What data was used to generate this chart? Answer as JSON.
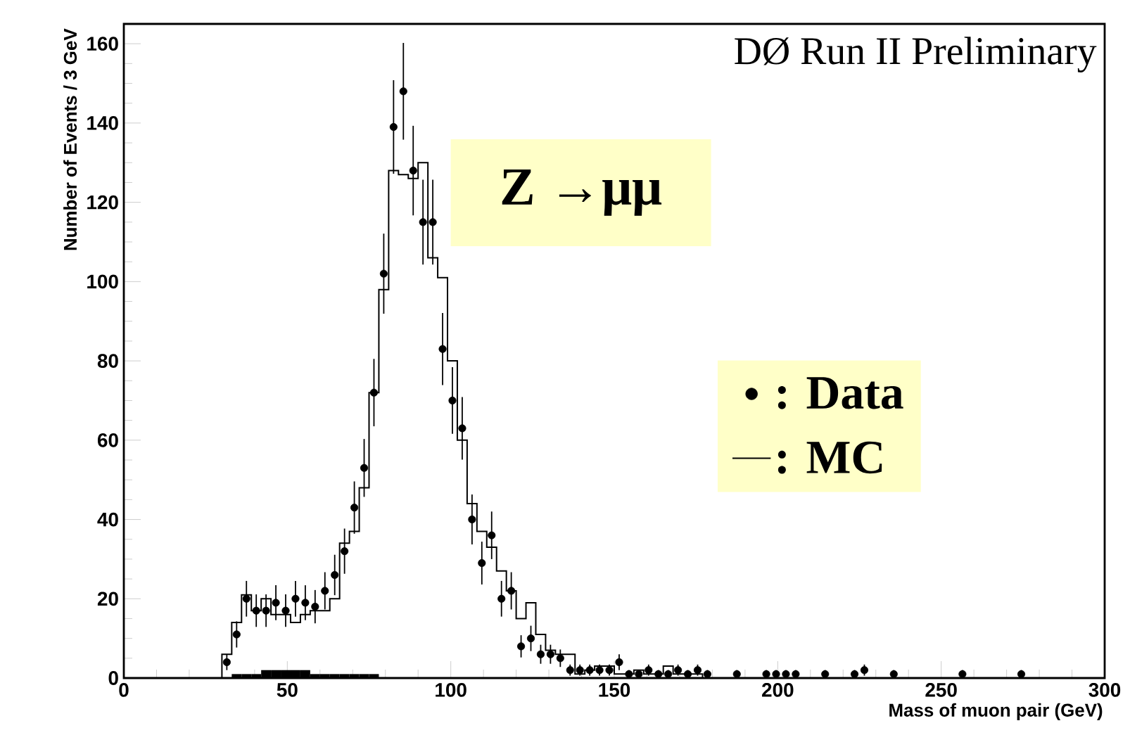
{
  "chart_data": {
    "type": "histogram",
    "annotations": [
      "DØ Run II Preliminary",
      "Z →μμ"
    ],
    "xlabel": "Mass of muon pair (GeV)",
    "ylabel": "Number of Events / 3 GeV",
    "xlim": [
      0,
      300
    ],
    "ylim": [
      0,
      165
    ],
    "xticks": [
      0,
      50,
      100,
      150,
      200,
      250,
      300
    ],
    "yticks": [
      0,
      20,
      40,
      60,
      80,
      100,
      120,
      140,
      160
    ],
    "legend": "right",
    "series": [
      {
        "color": "#000000",
        "bins": [
          33,
          36,
          39,
          42,
          45,
          48,
          51,
          54,
          57,
          60,
          63,
          66,
          69,
          72,
          75,
          78
        ],
        "values": [
          1,
          1,
          1,
          2,
          2,
          2,
          2,
          2,
          1,
          1,
          1,
          1,
          1,
          1,
          1
        ]
      },
      {
        "type": "scatter",
        "name": ": Data",
        "color": "#000000",
        "marker": "circle",
        "x": [
          31.5,
          34.5,
          37.5,
          40.5,
          43.5,
          46.5,
          49.5,
          52.5,
          55.5,
          58.5,
          61.5,
          64.5,
          67.5,
          70.5,
          73.5,
          76.5,
          79.5,
          82.5,
          85.5,
          88.5,
          91.5,
          94.5,
          97.5,
          100.5,
          103.5,
          106.5,
          109.5,
          112.5,
          115.5,
          118.5,
          121.5,
          124.5,
          127.5,
          130.5,
          133.5,
          136.5,
          139.5,
          142.5,
          145.5,
          148.5,
          151.5,
          154.5,
          157.5,
          160.5,
          163.5,
          166.5,
          169.5,
          172.5,
          175.5,
          178.5,
          187.5,
          196.5,
          199.5,
          202.5,
          205.5,
          214.5,
          223.5,
          226.5,
          235.5,
          256.5,
          274.5
        ],
        "values": [
          4,
          11,
          20,
          17,
          17,
          19,
          17,
          20,
          19,
          18,
          22,
          26,
          32,
          43,
          53,
          72,
          102,
          139,
          148,
          128,
          115,
          115,
          83,
          70,
          63,
          40,
          29,
          36,
          20,
          22,
          8,
          10,
          6,
          6,
          5,
          2,
          2,
          2,
          2,
          2,
          4,
          1,
          1,
          2,
          1,
          1,
          2,
          1,
          2,
          1,
          1,
          1,
          1,
          1,
          1,
          1,
          1,
          2,
          1,
          1,
          1
        ],
        "errors": [
          2,
          3.3,
          4.5,
          4.1,
          4.1,
          4.4,
          4.1,
          4.5,
          4.4,
          4.2,
          4.7,
          5.1,
          5.7,
          6.6,
          7.3,
          8.5,
          10.1,
          11.8,
          12.2,
          11.3,
          10.7,
          10.7,
          9.1,
          8.4,
          7.9,
          6.3,
          5.4,
          6,
          4.5,
          4.7,
          2.8,
          3.2,
          2.4,
          2.4,
          2.2,
          1.4,
          1.4,
          1.4,
          1.4,
          1.4,
          2,
          1,
          1,
          1.4,
          1,
          1,
          1.4,
          1,
          1.4,
          1,
          1,
          1,
          1,
          1,
          1,
          1,
          1,
          1.4,
          1,
          1,
          1
        ]
      },
      {
        "type": "step",
        "name": ": MC",
        "color": "#000000",
        "x": [
          27,
          30,
          33,
          36,
          39,
          42,
          45,
          48,
          51,
          54,
          57,
          60,
          63,
          66,
          69,
          72,
          75,
          78,
          81,
          84,
          87,
          90,
          93,
          96,
          99,
          102,
          105,
          108,
          111,
          114,
          117,
          120,
          123,
          126,
          129,
          132,
          135,
          138,
          141,
          144,
          147,
          150,
          153,
          156,
          159,
          162,
          165,
          168,
          171,
          174,
          177
        ],
        "values": [
          0,
          6,
          14,
          21,
          17,
          20,
          16,
          16,
          14,
          16,
          17,
          17,
          20,
          34,
          37,
          48,
          72,
          98,
          128,
          127,
          126,
          130,
          106,
          101,
          80,
          60,
          44,
          37,
          33,
          27,
          22,
          15,
          19,
          11,
          7,
          6,
          6,
          1,
          2,
          3,
          3,
          1,
          1,
          2,
          1,
          1,
          3,
          1,
          1,
          1,
          0
        ]
      }
    ]
  }
}
